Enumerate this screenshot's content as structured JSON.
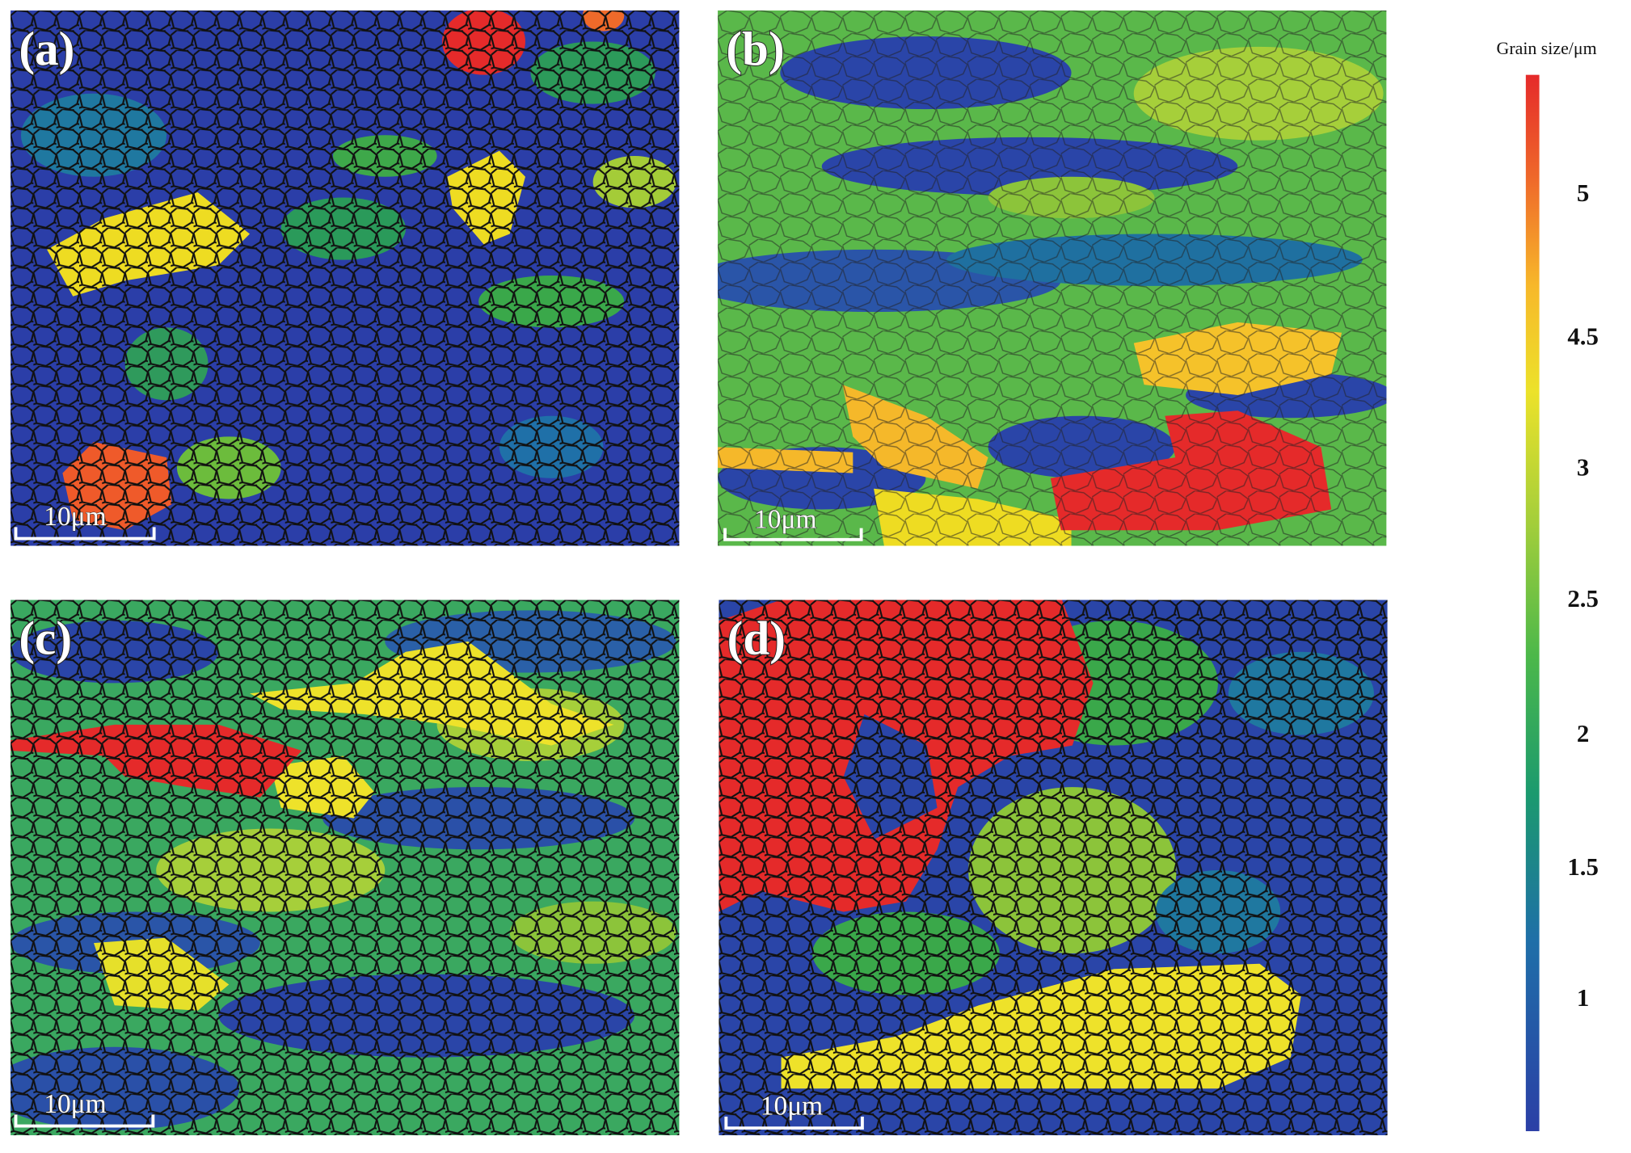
{
  "panels": [
    {
      "label": "(a)",
      "scale_bar": "10μm"
    },
    {
      "label": "(b)",
      "scale_bar": "10μm"
    },
    {
      "label": "(c)",
      "scale_bar": "10μm"
    },
    {
      "label": "(d)",
      "scale_bar": "10μm"
    }
  ],
  "colorbar": {
    "title": "Grain size/μm",
    "tick_labels": [
      "5",
      "4.5",
      "3",
      "2.5",
      "2",
      "1.5",
      "1"
    ]
  }
}
